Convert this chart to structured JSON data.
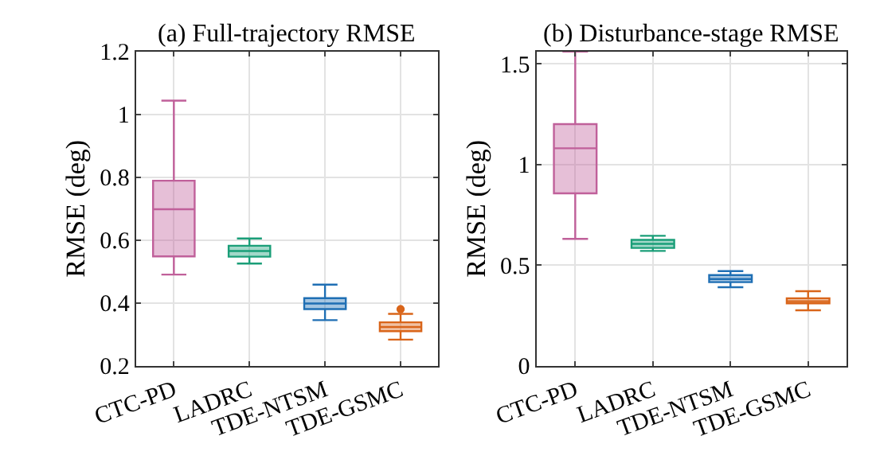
{
  "chart_data": [
    {
      "type": "box",
      "title": "(a) Full-trajectory RMSE",
      "ylabel": "RMSE (deg)",
      "categories": [
        "CTC-PD",
        "LADRC",
        "TDE-NTSM",
        "TDE-GSMC"
      ],
      "colors": [
        "#c0609a",
        "#1a9e78",
        "#1f6fb4",
        "#d9651a"
      ],
      "boxes": [
        {
          "low": 0.49,
          "q1": 0.548,
          "median": 0.698,
          "q3": 0.789,
          "high": 1.044
        },
        {
          "low": 0.525,
          "q1": 0.547,
          "median": 0.565,
          "q3": 0.582,
          "high": 0.605
        },
        {
          "low": 0.345,
          "q1": 0.38,
          "median": 0.398,
          "q3": 0.415,
          "high": 0.458
        },
        {
          "low": 0.283,
          "q1": 0.31,
          "median": 0.323,
          "q3": 0.338,
          "high": 0.365,
          "outliers": [
            0.38
          ]
        }
      ],
      "ylim": [
        0.2,
        1.2
      ],
      "yticks": [
        0.2,
        0.4,
        0.6,
        0.8,
        1,
        1.2
      ],
      "grid": true,
      "marker": "circle"
    },
    {
      "type": "box",
      "title": "(b) Disturbance-stage RMSE",
      "ylabel": "RMSE (deg)",
      "categories": [
        "CTC-PD",
        "LADRC",
        "TDE-NTSM",
        "TDE-GSMC"
      ],
      "colors": [
        "#c0609a",
        "#1a9e78",
        "#1f6fb4",
        "#d9651a"
      ],
      "boxes": [
        {
          "low": 0.63,
          "q1": 0.856,
          "median": 1.08,
          "q3": 1.2,
          "high": 1.56
        },
        {
          "low": 0.57,
          "q1": 0.585,
          "median": 0.605,
          "q3": 0.625,
          "high": 0.645
        },
        {
          "low": 0.39,
          "q1": 0.415,
          "median": 0.43,
          "q3": 0.45,
          "high": 0.47
        },
        {
          "low": 0.275,
          "q1": 0.31,
          "median": 0.32,
          "q3": 0.335,
          "high": 0.37
        }
      ],
      "ylim": [
        0,
        1.56
      ],
      "yticks": [
        0,
        0.5,
        1,
        1.5
      ],
      "grid": true
    }
  ]
}
